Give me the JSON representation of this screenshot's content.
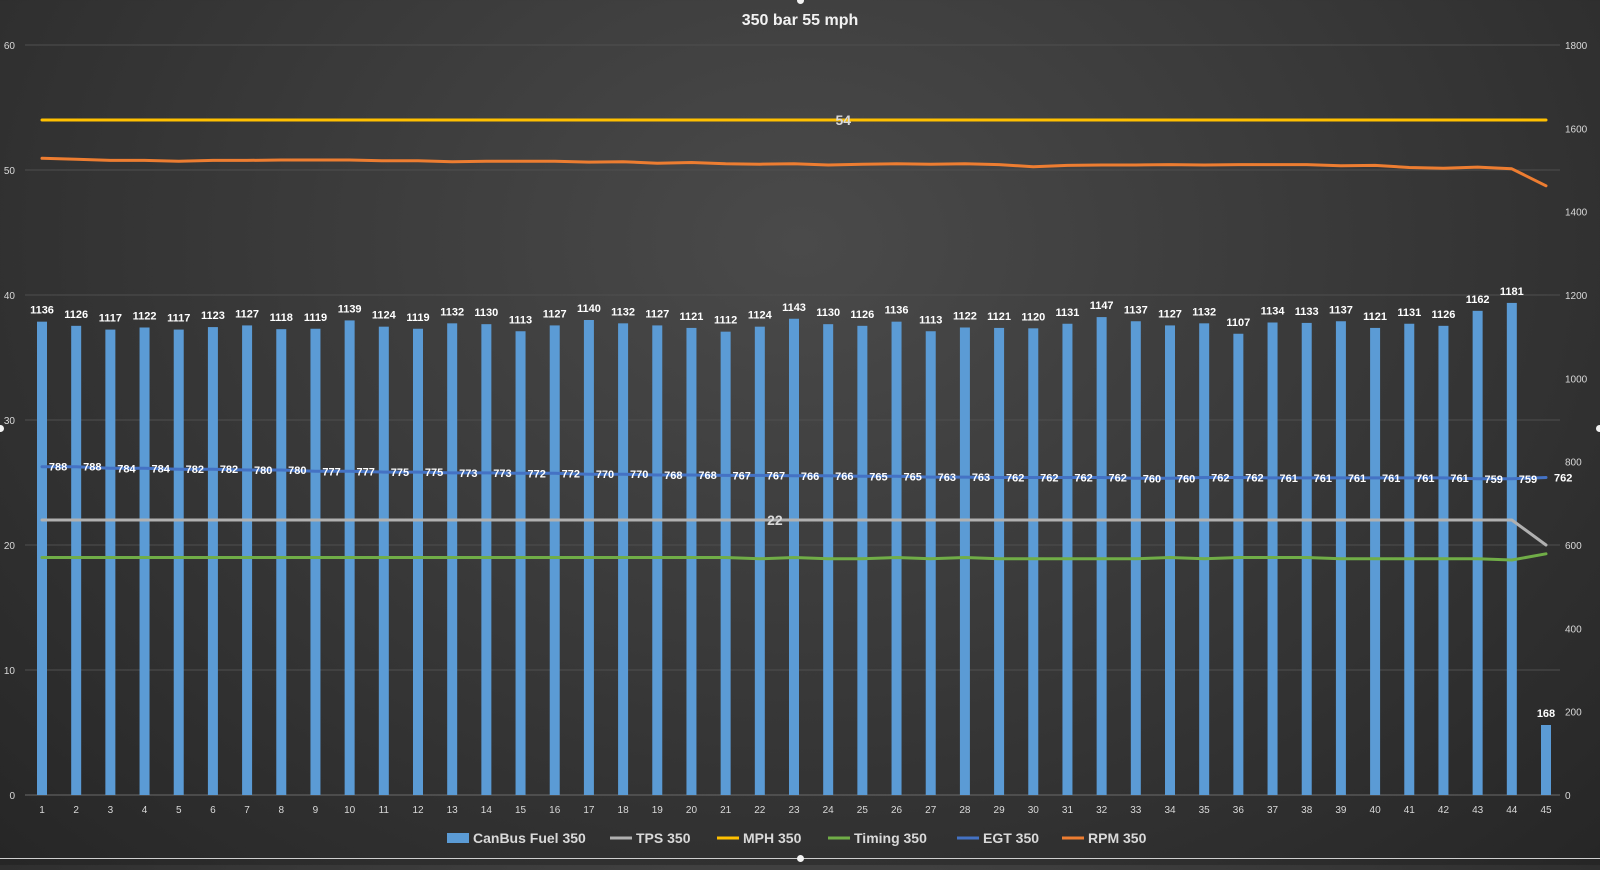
{
  "chart_data": {
    "type": "bar",
    "title": "350 bar 55 mph",
    "categories": [
      1,
      2,
      3,
      4,
      5,
      6,
      7,
      8,
      9,
      10,
      11,
      12,
      13,
      14,
      15,
      16,
      17,
      18,
      19,
      20,
      21,
      22,
      23,
      24,
      25,
      26,
      27,
      28,
      29,
      30,
      31,
      32,
      33,
      34,
      35,
      36,
      37,
      38,
      39,
      40,
      41,
      42,
      43,
      44,
      45
    ],
    "left_axis": {
      "min": 0,
      "max": 60,
      "ticks": [
        0,
        10,
        20,
        30,
        40,
        50,
        60
      ]
    },
    "right_axis": {
      "min": 0,
      "max": 1800,
      "ticks": [
        0,
        200,
        400,
        600,
        800,
        1000,
        1200,
        1400,
        1600,
        1800
      ]
    },
    "grid": true,
    "legend_position": "bottom",
    "series": [
      {
        "name": "CanBus Fuel 350",
        "kind": "bar",
        "axis": "right",
        "color": "#5b9bd5",
        "show_labels": true,
        "values": [
          1136,
          1126,
          1117,
          1122,
          1117,
          1123,
          1127,
          1118,
          1119,
          1139,
          1124,
          1119,
          1132,
          1130,
          1113,
          1127,
          1140,
          1132,
          1127,
          1121,
          1112,
          1124,
          1143,
          1130,
          1126,
          1136,
          1113,
          1122,
          1121,
          1120,
          1131,
          1147,
          1137,
          1127,
          1132,
          1107,
          1134,
          1133,
          1137,
          1121,
          1131,
          1126,
          1162,
          1181,
          168
        ]
      },
      {
        "name": "TPS 350",
        "kind": "line",
        "axis": "left",
        "color": "#b0b0b0",
        "label_indices": [
          21
        ],
        "values": [
          22,
          22,
          22,
          22,
          22,
          22,
          22,
          22,
          22,
          22,
          22,
          22,
          22,
          22,
          22,
          22,
          22,
          22,
          22,
          22,
          22,
          22,
          22,
          22,
          22,
          22,
          22,
          22,
          22,
          22,
          22,
          22,
          22,
          22,
          22,
          22,
          22,
          22,
          22,
          22,
          22,
          22,
          22,
          22,
          20
        ]
      },
      {
        "name": "MPH 350",
        "kind": "line",
        "axis": "left",
        "color": "#ffc000",
        "label_indices": [
          23
        ],
        "values": [
          54,
          54,
          54,
          54,
          54,
          54,
          54,
          54,
          54,
          54,
          54,
          54,
          54,
          54,
          54,
          54,
          54,
          54,
          54,
          54,
          54,
          54,
          54,
          54,
          54,
          54,
          54,
          54,
          54,
          54,
          54,
          54,
          54,
          54,
          54,
          54,
          54,
          54,
          54,
          54,
          54,
          54,
          54,
          54,
          54
        ]
      },
      {
        "name": "Timing 350",
        "kind": "line",
        "axis": "left",
        "color": "#70ad47",
        "values": [
          19,
          19,
          19,
          19,
          19,
          19,
          19,
          19,
          19,
          19,
          19,
          19,
          19,
          19,
          19,
          19,
          19,
          19,
          19,
          19,
          19,
          18.9,
          19,
          18.9,
          18.9,
          19,
          18.9,
          19,
          18.9,
          18.9,
          18.9,
          18.9,
          18.9,
          19,
          18.9,
          19,
          19,
          19,
          18.9,
          18.9,
          18.9,
          18.9,
          18.9,
          18.8,
          19.3
        ]
      },
      {
        "name": "EGT 350",
        "kind": "line",
        "axis": "right",
        "color": "#4472c4",
        "show_labels": true,
        "values": [
          788,
          788,
          784,
          784,
          782,
          782,
          780,
          780,
          777,
          777,
          775,
          775,
          773,
          773,
          772,
          772,
          770,
          770,
          768,
          768,
          767,
          767,
          766,
          766,
          765,
          765,
          763,
          763,
          762,
          762,
          762,
          762,
          760,
          760,
          762,
          762,
          761,
          761,
          761,
          761,
          761,
          761,
          759,
          759,
          762
        ]
      },
      {
        "name": "RPM 350",
        "kind": "line",
        "axis": "right",
        "color": "#ed7d31",
        "values": [
          1528,
          1526,
          1523,
          1523,
          1521,
          1523,
          1523,
          1524,
          1524,
          1524,
          1522,
          1522,
          1520,
          1521,
          1521,
          1521,
          1519,
          1520,
          1516,
          1518,
          1515,
          1514,
          1515,
          1512,
          1514,
          1515,
          1514,
          1515,
          1513,
          1508,
          1511,
          1512,
          1512,
          1513,
          1512,
          1513,
          1513,
          1513,
          1510,
          1511,
          1506,
          1504,
          1507,
          1503,
          1462
        ]
      }
    ]
  }
}
